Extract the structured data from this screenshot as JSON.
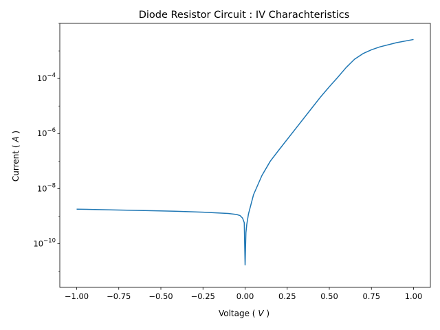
{
  "chart_data": {
    "type": "line",
    "title": "Diode Resistor Circuit : IV Charachteristics",
    "xlabel": "Voltage",
    "xlabel_unit": "V",
    "ylabel": "Current",
    "ylabel_unit": "A",
    "yscale": "log",
    "xlim": [
      -1.1,
      1.1
    ],
    "ylim": [
      2.6e-12,
      0.01
    ],
    "grid": false,
    "x_ticks": [
      {
        "value": -1.0,
        "label": "−1.00"
      },
      {
        "value": -0.75,
        "label": "−0.75"
      },
      {
        "value": -0.5,
        "label": "−0.50"
      },
      {
        "value": -0.25,
        "label": "−0.25"
      },
      {
        "value": 0.0,
        "label": "0.00"
      },
      {
        "value": 0.25,
        "label": "0.25"
      },
      {
        "value": 0.5,
        "label": "0.50"
      },
      {
        "value": 0.75,
        "label": "0.75"
      },
      {
        "value": 1.0,
        "label": "1.00"
      }
    ],
    "y_ticks": [
      {
        "value": 1e-10,
        "base": "10",
        "exp": "−10"
      },
      {
        "value": 1e-08,
        "base": "10",
        "exp": "−8"
      },
      {
        "value": 1e-06,
        "base": "10",
        "exp": "−6"
      },
      {
        "value": 0.0001,
        "base": "10",
        "exp": "−4"
      }
    ],
    "series": [
      {
        "color": "#1f77b4",
        "x": [
          -1.0,
          -0.8,
          -0.6,
          -0.4,
          -0.25,
          -0.15,
          -0.1,
          -0.05,
          -0.03,
          -0.015,
          -0.005,
          0.0,
          0.005,
          0.01,
          0.02,
          0.05,
          0.1,
          0.15,
          0.2,
          0.3,
          0.4,
          0.45,
          0.5,
          0.55,
          0.6,
          0.65,
          0.7,
          0.75,
          0.8,
          0.9,
          1.0
        ],
        "y": [
          1.8e-09,
          1.7e-09,
          1.6e-09,
          1.5e-09,
          1.4e-09,
          1.3e-09,
          1.25e-09,
          1.15e-09,
          1.05e-09,
          8.5e-10,
          5.8e-10,
          1.7e-11,
          2.5e-10,
          5e-10,
          1.2e-09,
          6e-09,
          3e-08,
          1e-07,
          2.5e-07,
          1.5e-06,
          9e-06,
          2.2e-05,
          5e-05,
          0.00011,
          0.00025,
          0.0005,
          0.0008,
          0.0011,
          0.0014,
          0.002,
          0.0026
        ]
      }
    ]
  }
}
